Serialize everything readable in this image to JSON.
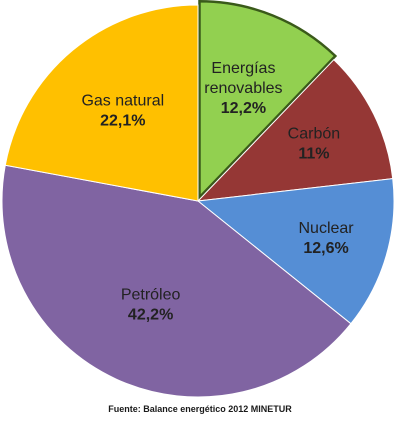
{
  "chart_data": {
    "type": "pie",
    "slices": [
      {
        "label_lines": [
          "Energías",
          "renovables"
        ],
        "value": 12.2,
        "value_text": "12,2%",
        "color": "#92d050",
        "exploded": true
      },
      {
        "label_lines": [
          "Carbón"
        ],
        "value": 11.0,
        "value_text": "11%",
        "color": "#953735"
      },
      {
        "label_lines": [
          "Nuclear"
        ],
        "value": 12.6,
        "value_text": "12,6%",
        "color": "#558ed5"
      },
      {
        "label_lines": [
          "Petróleo"
        ],
        "value": 42.2,
        "value_text": "42,2%",
        "color": "#8064a2"
      },
      {
        "label_lines": [
          "Gas natural"
        ],
        "value": 22.1,
        "value_text": "22,1%",
        "color": "#ffc000"
      }
    ],
    "start_angle_deg": 0,
    "direction": "clockwise",
    "labels_inside": true
  },
  "source_text": "Fuente: Balance energético 2012 MINETUR"
}
